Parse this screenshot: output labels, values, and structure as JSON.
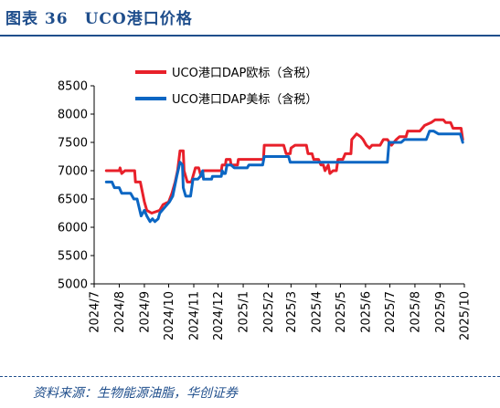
{
  "figure": {
    "title": "图表 36　UCO港口价格",
    "source": "资料来源：生物能源油脂，华创证券"
  },
  "chart_data": {
    "type": "line",
    "title": "",
    "xlabel": "",
    "ylabel": "",
    "ylim": [
      5000,
      8500
    ],
    "yticks": [
      5000,
      5500,
      6000,
      6500,
      7000,
      7500,
      8000,
      8500
    ],
    "x_range": [
      "2024-07-01",
      "2025-10-01"
    ],
    "x_ticks": [
      "2024/7",
      "2024/8",
      "2024/9",
      "2024/10",
      "2024/11",
      "2024/12",
      "2025/1",
      "2025/2",
      "2025/3",
      "2025/4",
      "2025/5",
      "2025/6",
      "2025/7",
      "2025/8",
      "2025/9",
      "2025/10"
    ],
    "legend": "top-left",
    "grid": false,
    "series": [
      {
        "name": "UCO港口DAP欧标（含税）",
        "color": "#e8202a",
        "points": [
          [
            "2024-07-16",
            7000
          ],
          [
            "2024-08-01",
            7000
          ],
          [
            "2024-08-02",
            7050
          ],
          [
            "2024-08-04",
            6950
          ],
          [
            "2024-08-08",
            7000
          ],
          [
            "2024-08-20",
            7000
          ],
          [
            "2024-08-21",
            6800
          ],
          [
            "2024-08-27",
            6800
          ],
          [
            "2024-09-01",
            6450
          ],
          [
            "2024-09-04",
            6300
          ],
          [
            "2024-09-10",
            6250
          ],
          [
            "2024-09-20",
            6300
          ],
          [
            "2024-09-24",
            6400
          ],
          [
            "2024-10-01",
            6450
          ],
          [
            "2024-10-05",
            6600
          ],
          [
            "2024-10-09",
            6800
          ],
          [
            "2024-10-12",
            7000
          ],
          [
            "2024-10-15",
            7350
          ],
          [
            "2024-10-19",
            7350
          ],
          [
            "2024-10-20",
            7000
          ],
          [
            "2024-10-24",
            6800
          ],
          [
            "2024-10-29",
            6800
          ],
          [
            "2024-11-03",
            7050
          ],
          [
            "2024-11-07",
            7050
          ],
          [
            "2024-11-10",
            6900
          ],
          [
            "2024-11-13",
            7000
          ],
          [
            "2024-12-05",
            7000
          ],
          [
            "2024-12-06",
            7100
          ],
          [
            "2024-12-10",
            7100
          ],
          [
            "2024-12-11",
            7200
          ],
          [
            "2024-12-16",
            7200
          ],
          [
            "2024-12-17",
            7100
          ],
          [
            "2024-12-25",
            7100
          ],
          [
            "2024-12-26",
            7200
          ],
          [
            "2025-01-26",
            7200
          ],
          [
            "2025-01-27",
            7450
          ],
          [
            "2025-02-20",
            7450
          ],
          [
            "2025-02-23",
            7300
          ],
          [
            "2025-02-28",
            7300
          ],
          [
            "2025-03-01",
            7400
          ],
          [
            "2025-03-06",
            7450
          ],
          [
            "2025-03-20",
            7450
          ],
          [
            "2025-03-22",
            7300
          ],
          [
            "2025-03-27",
            7300
          ],
          [
            "2025-03-29",
            7200
          ],
          [
            "2025-04-04",
            7200
          ],
          [
            "2025-04-07",
            7100
          ],
          [
            "2025-04-10",
            7100
          ],
          [
            "2025-04-12",
            7000
          ],
          [
            "2025-04-16",
            7100
          ],
          [
            "2025-04-18",
            6950
          ],
          [
            "2025-04-22",
            7000
          ],
          [
            "2025-04-26",
            7000
          ],
          [
            "2025-04-28",
            7200
          ],
          [
            "2025-05-04",
            7200
          ],
          [
            "2025-05-07",
            7300
          ],
          [
            "2025-05-14",
            7300
          ],
          [
            "2025-05-15",
            7550
          ],
          [
            "2025-05-21",
            7650
          ],
          [
            "2025-05-26",
            7600
          ],
          [
            "2025-05-29",
            7550
          ],
          [
            "2025-06-02",
            7450
          ],
          [
            "2025-06-06",
            7400
          ],
          [
            "2025-06-09",
            7450
          ],
          [
            "2025-06-19",
            7450
          ],
          [
            "2025-06-23",
            7550
          ],
          [
            "2025-06-28",
            7550
          ],
          [
            "2025-07-03",
            7450
          ],
          [
            "2025-07-09",
            7550
          ],
          [
            "2025-07-13",
            7600
          ],
          [
            "2025-07-21",
            7600
          ],
          [
            "2025-07-23",
            7700
          ],
          [
            "2025-08-07",
            7700
          ],
          [
            "2025-08-10",
            7750
          ],
          [
            "2025-08-13",
            7800
          ],
          [
            "2025-08-21",
            7850
          ],
          [
            "2025-08-26",
            7900
          ],
          [
            "2025-09-05",
            7900
          ],
          [
            "2025-09-08",
            7850
          ],
          [
            "2025-09-14",
            7850
          ],
          [
            "2025-09-17",
            7750
          ],
          [
            "2025-09-27",
            7750
          ],
          [
            "2025-09-29",
            7550
          ]
        ]
      },
      {
        "name": "UCO港口DAP美标（含税）",
        "color": "#0b66c3",
        "points": [
          [
            "2024-07-16",
            6800
          ],
          [
            "2024-07-23",
            6800
          ],
          [
            "2024-07-26",
            6700
          ],
          [
            "2024-08-01",
            6700
          ],
          [
            "2024-08-04",
            6600
          ],
          [
            "2024-08-15",
            6600
          ],
          [
            "2024-08-19",
            6500
          ],
          [
            "2024-08-23",
            6500
          ],
          [
            "2024-08-28",
            6200
          ],
          [
            "2024-09-01",
            6300
          ],
          [
            "2024-09-04",
            6200
          ],
          [
            "2024-09-08",
            6100
          ],
          [
            "2024-09-11",
            6150
          ],
          [
            "2024-09-14",
            6100
          ],
          [
            "2024-09-18",
            6150
          ],
          [
            "2024-09-20",
            6250
          ],
          [
            "2024-09-23",
            6300
          ],
          [
            "2024-09-26",
            6350
          ],
          [
            "2024-10-02",
            6450
          ],
          [
            "2024-10-06",
            6550
          ],
          [
            "2024-10-11",
            6900
          ],
          [
            "2024-10-15",
            7150
          ],
          [
            "2024-10-18",
            7100
          ],
          [
            "2024-10-19",
            6700
          ],
          [
            "2024-10-22",
            6550
          ],
          [
            "2024-10-28",
            6550
          ],
          [
            "2024-10-31",
            6850
          ],
          [
            "2024-11-06",
            6850
          ],
          [
            "2024-11-09",
            6900
          ],
          [
            "2024-11-12",
            7000
          ],
          [
            "2024-11-13",
            6850
          ],
          [
            "2024-11-23",
            6850
          ],
          [
            "2024-11-24",
            6900
          ],
          [
            "2024-12-05",
            6900
          ],
          [
            "2024-12-06",
            7000
          ],
          [
            "2024-12-08",
            6950
          ],
          [
            "2024-12-10",
            6950
          ],
          [
            "2024-12-12",
            7100
          ],
          [
            "2024-12-17",
            7100
          ],
          [
            "2024-12-21",
            7050
          ],
          [
            "2025-01-06",
            7050
          ],
          [
            "2025-01-08",
            7100
          ],
          [
            "2025-01-25",
            7100
          ],
          [
            "2025-01-27",
            7250
          ],
          [
            "2025-02-26",
            7250
          ],
          [
            "2025-02-28",
            7150
          ],
          [
            "2025-03-10",
            7150
          ],
          [
            "2025-03-11",
            7150
          ],
          [
            "2025-05-11",
            7150
          ],
          [
            "2025-05-14",
            7150
          ],
          [
            "2025-06-20",
            7150
          ],
          [
            "2025-06-28",
            7150
          ],
          [
            "2025-06-30",
            7500
          ],
          [
            "2025-07-15",
            7500
          ],
          [
            "2025-07-19",
            7550
          ],
          [
            "2025-08-15",
            7550
          ],
          [
            "2025-08-19",
            7700
          ],
          [
            "2025-08-24",
            7700
          ],
          [
            "2025-08-30",
            7650
          ],
          [
            "2025-09-26",
            7650
          ],
          [
            "2025-09-29",
            7500
          ]
        ]
      }
    ]
  }
}
